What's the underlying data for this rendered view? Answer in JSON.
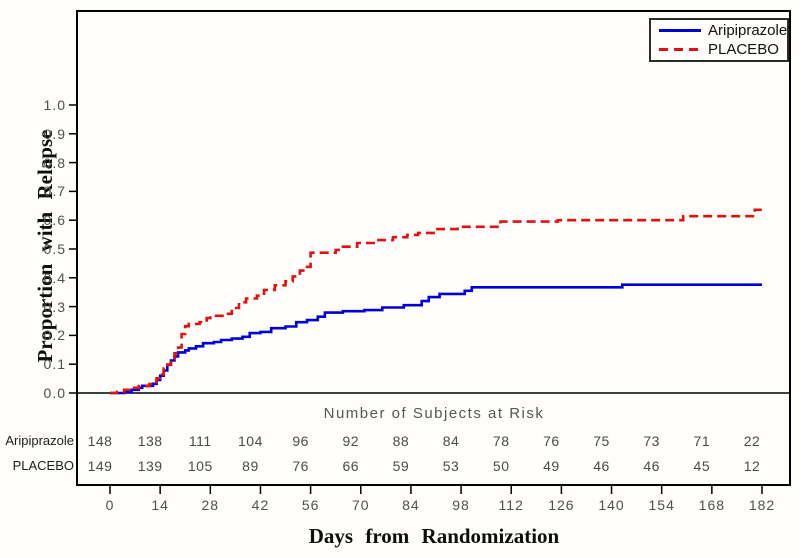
{
  "figure": {
    "background": "#fffefb",
    "frame_color": "#000000",
    "tick_text_color": "#4f4f4f"
  },
  "chart_data": {
    "type": "line",
    "subtype": "kaplan-meier-step",
    "title": "",
    "xlabel": "Days from Randomization",
    "ylabel": "Proportion with Relapse",
    "xlim": [
      0,
      182
    ],
    "ylim": [
      0.0,
      1.0
    ],
    "grid": false,
    "x_ticks": [
      0,
      14,
      28,
      42,
      56,
      70,
      84,
      98,
      112,
      126,
      140,
      154,
      168,
      182
    ],
    "y_tick_labels": [
      "0.0",
      "0.1",
      "0.2",
      "0.3",
      "0.4",
      "0.5",
      "0.6",
      "0.7",
      "0.8",
      "0.9",
      "1.0"
    ],
    "legend": {
      "position": "top-right",
      "entries": [
        {
          "name": "Aripiprazole",
          "color": "#0000d6",
          "style": "solid"
        },
        {
          "name": "PLACEBO",
          "color": "#e01111",
          "style": "dashed"
        }
      ]
    },
    "series": [
      {
        "name": "Aripiprazole",
        "color": "#0000d6",
        "line_style": "solid",
        "points": [
          [
            0,
            0
          ],
          [
            4,
            0.004
          ],
          [
            6,
            0.011
          ],
          [
            8,
            0.018
          ],
          [
            9,
            0.025
          ],
          [
            12,
            0.032
          ],
          [
            13,
            0.045
          ],
          [
            14,
            0.06
          ],
          [
            15,
            0.078
          ],
          [
            16,
            0.098
          ],
          [
            17,
            0.113
          ],
          [
            18,
            0.127
          ],
          [
            19,
            0.141
          ],
          [
            21,
            0.148
          ],
          [
            22,
            0.155
          ],
          [
            24,
            0.162
          ],
          [
            26,
            0.173
          ],
          [
            29,
            0.177
          ],
          [
            31,
            0.184
          ],
          [
            34,
            0.189
          ],
          [
            37,
            0.195
          ],
          [
            39,
            0.208
          ],
          [
            42,
            0.212
          ],
          [
            45,
            0.225
          ],
          [
            49,
            0.231
          ],
          [
            52,
            0.246
          ],
          [
            55,
            0.253
          ],
          [
            58,
            0.265
          ],
          [
            60,
            0.279
          ],
          [
            65,
            0.284
          ],
          [
            71,
            0.288
          ],
          [
            76,
            0.297
          ],
          [
            82,
            0.305
          ],
          [
            87,
            0.319
          ],
          [
            89,
            0.333
          ],
          [
            92,
            0.344
          ],
          [
            99,
            0.355
          ],
          [
            101,
            0.367
          ],
          [
            143,
            0.376
          ],
          [
            182,
            0.376
          ]
        ]
      },
      {
        "name": "PLACEBO",
        "color": "#e01111",
        "line_style": "dashed",
        "points": [
          [
            0,
            0
          ],
          [
            2,
            0.004
          ],
          [
            4,
            0.011
          ],
          [
            6,
            0.018
          ],
          [
            8,
            0.024
          ],
          [
            11,
            0.031
          ],
          [
            12,
            0.038
          ],
          [
            13,
            0.051
          ],
          [
            14,
            0.065
          ],
          [
            15,
            0.085
          ],
          [
            16,
            0.099
          ],
          [
            17,
            0.118
          ],
          [
            18,
            0.138
          ],
          [
            19,
            0.158
          ],
          [
            20,
            0.205
          ],
          [
            21,
            0.232
          ],
          [
            22,
            0.24
          ],
          [
            25,
            0.246
          ],
          [
            27,
            0.26
          ],
          [
            28,
            0.268
          ],
          [
            32,
            0.275
          ],
          [
            34,
            0.295
          ],
          [
            36,
            0.315
          ],
          [
            38,
            0.328
          ],
          [
            41,
            0.338
          ],
          [
            43,
            0.358
          ],
          [
            46,
            0.374
          ],
          [
            49,
            0.388
          ],
          [
            51,
            0.405
          ],
          [
            53,
            0.425
          ],
          [
            55,
            0.438
          ],
          [
            56,
            0.487
          ],
          [
            63,
            0.497
          ],
          [
            65,
            0.508
          ],
          [
            69,
            0.521
          ],
          [
            74,
            0.531
          ],
          [
            79,
            0.541
          ],
          [
            83,
            0.549
          ],
          [
            86,
            0.556
          ],
          [
            91,
            0.569
          ],
          [
            97,
            0.577
          ],
          [
            109,
            0.595
          ],
          [
            125,
            0.6
          ],
          [
            160,
            0.614
          ],
          [
            180,
            0.636
          ],
          [
            182,
            0.64
          ]
        ]
      }
    ],
    "risk_table": {
      "title": "Number of Subjects at Risk",
      "days": [
        0,
        14,
        28,
        42,
        56,
        70,
        84,
        98,
        112,
        126,
        140,
        154,
        168,
        182
      ],
      "rows": [
        {
          "label": "Aripiprazole",
          "counts": [
            148,
            138,
            111,
            104,
            96,
            92,
            88,
            84,
            78,
            76,
            75,
            73,
            71,
            22
          ]
        },
        {
          "label": "PLACEBO",
          "counts": [
            149,
            139,
            105,
            89,
            76,
            66,
            59,
            53,
            50,
            49,
            46,
            46,
            45,
            12
          ]
        }
      ]
    }
  }
}
